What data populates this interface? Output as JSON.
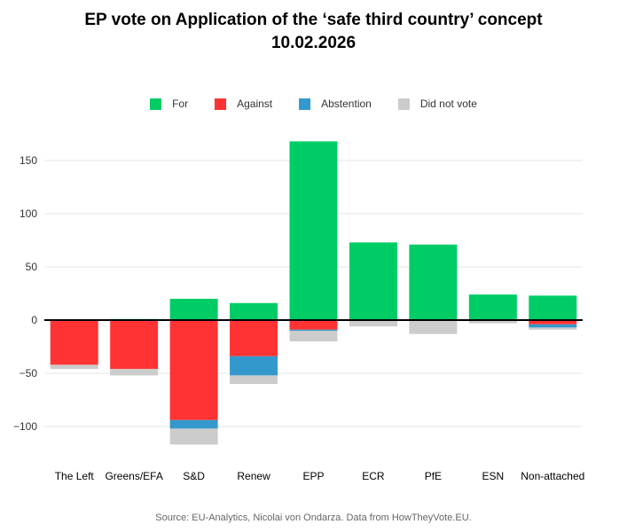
{
  "chart_data": {
    "type": "bar",
    "stacked": true,
    "title": "EP vote on Application of the ‘safe third country’ concept",
    "subtitle": "10.02.2026",
    "categories": [
      "The Left",
      "Greens/EFA",
      "S&D",
      "Renew",
      "EPP",
      "ECR",
      "PfE",
      "ESN",
      "Non-attached"
    ],
    "series": [
      {
        "name": "For",
        "color": "#00cc66",
        "values": [
          0,
          1,
          20,
          16,
          168,
          73,
          71,
          24,
          23
        ]
      },
      {
        "name": "Against",
        "color": "#ff3333",
        "values": [
          42,
          46,
          94,
          34,
          9,
          0,
          0,
          0,
          4
        ]
      },
      {
        "name": "Abstention",
        "color": "#3399cc",
        "values": [
          0,
          0,
          8,
          18,
          1,
          0,
          0,
          0,
          3
        ]
      },
      {
        "name": "Did not vote",
        "color": "#cccccc",
        "values": [
          4,
          6,
          15,
          8,
          10,
          6,
          13,
          3,
          2
        ]
      }
    ],
    "negative_series": [
      "Against",
      "Abstention",
      "Did not vote"
    ],
    "yticks": [
      150,
      100,
      50,
      0,
      -50,
      -100
    ],
    "ytick_labels": [
      "150",
      "100",
      "50",
      "0",
      "−50",
      "−100"
    ],
    "ylim": [
      -125,
      185
    ],
    "xlabel": "",
    "ylabel": "",
    "grid": true,
    "legend_position": "top-center"
  },
  "source": "Source: EU-Analytics, Nicolai von Ondarza. Data from HowTheyVote.EU."
}
